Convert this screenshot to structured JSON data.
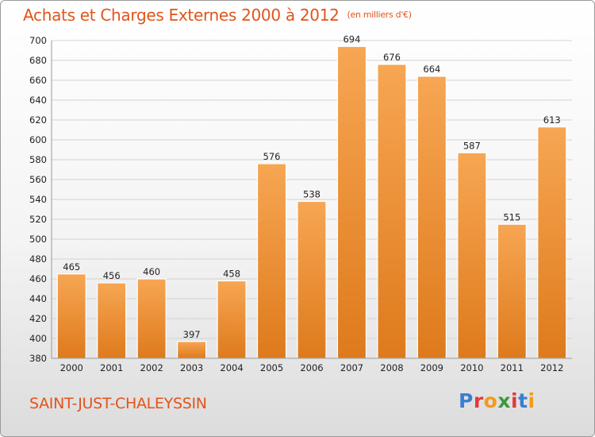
{
  "header": {
    "title": "Achats et Charges Externes 2000 à 2012",
    "unit": "(en milliers d'€)"
  },
  "footer": {
    "commune": "SAINT-JUST-CHALEYSSIN",
    "logo": "Proxiti",
    "logo_colors": [
      "#3a7fd0",
      "#e23a3a",
      "#f29a1a",
      "#3a9a3a",
      "#e23a3a",
      "#3a7fd0",
      "#f29a1a"
    ]
  },
  "colors": {
    "bar_light": "#f7a653",
    "bar_dark": "#de7a1c",
    "bar_stroke": "#ffffff",
    "grid": "#d2d2d2",
    "axis_text": "#222222"
  },
  "chart_data": {
    "type": "bar",
    "categories": [
      "2000",
      "2001",
      "2002",
      "2003",
      "2004",
      "2005",
      "2006",
      "2007",
      "2008",
      "2009",
      "2010",
      "2011",
      "2012"
    ],
    "values": [
      465,
      456,
      460,
      397,
      458,
      576,
      538,
      694,
      676,
      664,
      587,
      515,
      613
    ],
    "data_labels": [
      "465",
      "456",
      "460",
      "397",
      "458",
      "576",
      "538",
      "694",
      "676",
      "664",
      "587",
      "515",
      "613"
    ],
    "title": "Achats et Charges Externes 2000 à 2012",
    "unit": "(en milliers d'€)",
    "ylim": [
      380,
      700
    ],
    "yticks": [
      380,
      400,
      420,
      440,
      460,
      480,
      500,
      520,
      540,
      560,
      580,
      600,
      620,
      640,
      660,
      680,
      700
    ],
    "grid": true,
    "legend": "none"
  }
}
